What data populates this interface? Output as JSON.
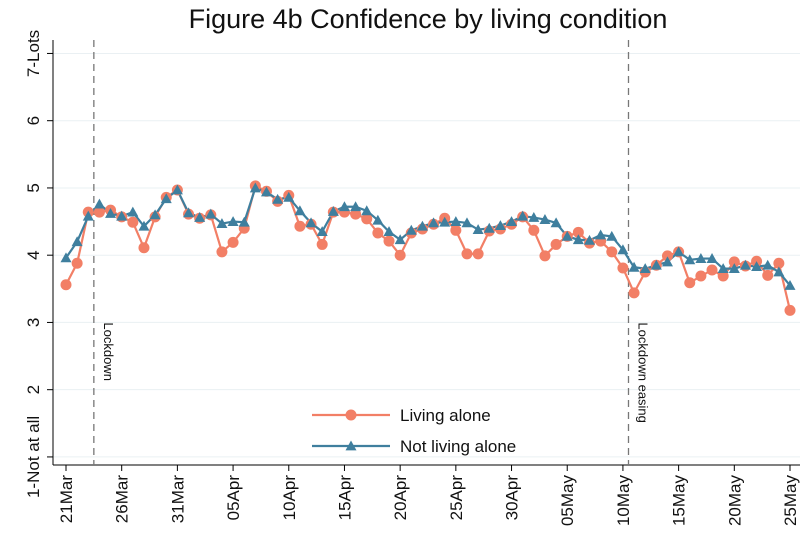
{
  "chart_data": {
    "type": "line",
    "title": "Figure 4b Confidence by living condition",
    "categories": [
      "21Mar",
      null,
      null,
      null,
      null,
      "26Mar",
      null,
      null,
      null,
      null,
      "31Mar",
      null,
      null,
      null,
      null,
      "05Apr",
      null,
      null,
      null,
      null,
      "10Apr",
      null,
      null,
      null,
      null,
      "15Apr",
      null,
      null,
      null,
      null,
      "20Apr",
      null,
      null,
      null,
      null,
      "25Apr",
      null,
      null,
      null,
      null,
      "30Apr",
      null,
      null,
      null,
      null,
      "05May",
      null,
      null,
      null,
      null,
      "10May",
      null,
      null,
      null,
      null,
      "15May",
      null,
      null,
      null,
      null,
      "20May",
      null,
      null,
      null,
      null,
      "25May"
    ],
    "series": [
      {
        "name": "Living alone",
        "color": "#f27f66",
        "marker": "circle",
        "values": [
          3.56,
          3.88,
          4.64,
          4.64,
          4.67,
          4.57,
          4.49,
          4.11,
          4.57,
          4.86,
          4.97,
          4.61,
          4.55,
          4.6,
          4.05,
          4.19,
          4.4,
          5.03,
          4.95,
          4.8,
          4.89,
          4.43,
          4.46,
          4.16,
          4.64,
          4.64,
          4.61,
          4.54,
          4.33,
          4.21,
          4.0,
          4.33,
          4.39,
          4.46,
          4.55,
          4.37,
          4.02,
          4.02,
          4.36,
          4.39,
          4.46,
          4.57,
          4.37,
          3.99,
          4.16,
          4.28,
          4.34,
          4.18,
          4.21,
          4.05,
          3.81,
          3.44,
          3.75,
          3.85,
          3.99,
          4.05,
          3.59,
          3.69,
          3.78,
          3.69,
          3.9,
          3.84,
          3.91,
          3.7,
          3.88,
          3.18
        ]
      },
      {
        "name": "Not living alone",
        "color": "#3f7f9e",
        "marker": "triangle",
        "values": [
          3.96,
          4.2,
          4.58,
          4.76,
          4.62,
          4.58,
          4.64,
          4.43,
          4.6,
          4.84,
          4.97,
          4.63,
          4.56,
          4.61,
          4.47,
          4.5,
          4.49,
          5.0,
          4.94,
          4.83,
          4.86,
          4.66,
          4.48,
          4.35,
          4.65,
          4.72,
          4.72,
          4.66,
          4.52,
          4.35,
          4.23,
          4.37,
          4.43,
          4.48,
          4.49,
          4.5,
          4.48,
          4.38,
          4.4,
          4.44,
          4.5,
          4.58,
          4.56,
          4.53,
          4.48,
          4.28,
          4.23,
          4.22,
          4.3,
          4.28,
          4.08,
          3.82,
          3.8,
          3.85,
          3.9,
          4.05,
          3.93,
          3.95,
          3.95,
          3.8,
          3.8,
          3.85,
          3.83,
          3.85,
          3.75,
          3.55
        ]
      }
    ],
    "ylim": [
      0.88,
      7.2
    ],
    "yticks": [
      {
        "value": 1,
        "label": "1-Not at all"
      },
      2,
      3,
      4,
      5,
      6,
      {
        "value": 7,
        "label": "7-Lots"
      }
    ],
    "annotations": [
      {
        "text": "Lockdown"
      },
      {
        "text": "Lockdown easing"
      }
    ],
    "grid": true,
    "legend": "bottom"
  }
}
